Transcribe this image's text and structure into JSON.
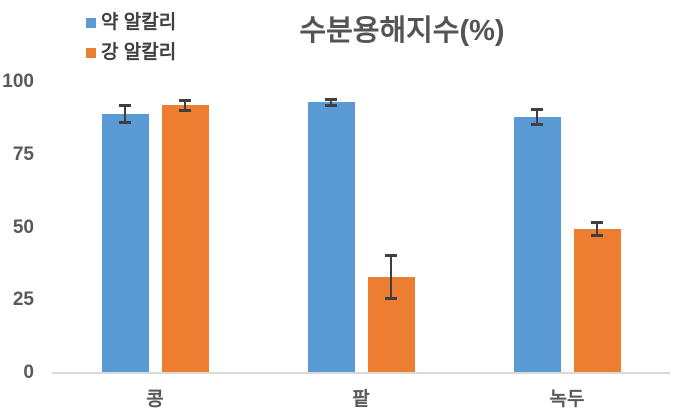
{
  "chart_data": {
    "type": "bar",
    "title": "수분용해지수(%)",
    "categories": [
      "콩",
      "팥",
      "녹두"
    ],
    "series": [
      {
        "name": "약 알칼리",
        "color": "#5B9BD5",
        "values": [
          89,
          93,
          88
        ],
        "errors": [
          3,
          1,
          2.5
        ]
      },
      {
        "name": "강 알칼리",
        "color": "#ED7D31",
        "values": [
          92,
          33,
          49.5
        ],
        "errors": [
          1.7,
          7.5,
          2.3
        ]
      }
    ],
    "xlabel": "",
    "ylabel": "",
    "ylim": [
      0,
      100
    ],
    "yticks": [
      0,
      25,
      50,
      75,
      100
    ],
    "grid": false,
    "legend_position": "top-left",
    "error_bars": true
  },
  "colors": {
    "series_weak_alkali": "#5B9BD5",
    "series_strong_alkali": "#ED7D31",
    "title_text": "#545454",
    "axis_text": "#595959",
    "axis_line": "#d9d9d9",
    "error_bar": "#3f3f3f",
    "background": "#ffffff"
  }
}
